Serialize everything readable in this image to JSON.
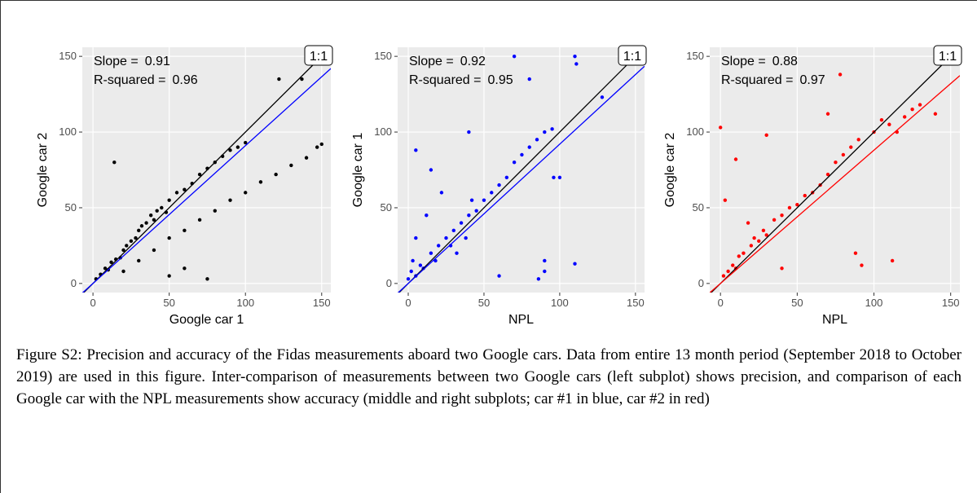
{
  "chart_data": [
    {
      "type": "scatter",
      "xlabel": "Google car 1",
      "ylabel": "Google car 2",
      "color": "#000000",
      "xlim": [
        -7,
        156
      ],
      "ylim": [
        -6,
        156
      ],
      "xticks": [
        0,
        50,
        100,
        150
      ],
      "yticks": [
        0,
        50,
        100,
        150
      ],
      "grid": true,
      "slope_label": "Slope =",
      "r2_label": "R-squared =",
      "identity_label": "1:1",
      "fit": {
        "slope": 0.91,
        "r_squared": 0.96,
        "color": "#0000ff"
      },
      "x": [
        2,
        5,
        8,
        10,
        12,
        15,
        18,
        20,
        22,
        25,
        28,
        30,
        32,
        35,
        38,
        40,
        42,
        45,
        48,
        50,
        55,
        60,
        65,
        70,
        75,
        80,
        85,
        90,
        95,
        100,
        122,
        137,
        14,
        50,
        75,
        60,
        20,
        30,
        40,
        50,
        60,
        70,
        80,
        90,
        100,
        110,
        120,
        130,
        140,
        150,
        147
      ],
      "y": [
        3,
        6,
        10,
        9,
        14,
        16,
        17,
        22,
        25,
        28,
        30,
        35,
        38,
        40,
        45,
        42,
        48,
        50,
        47,
        55,
        60,
        62,
        66,
        72,
        76,
        80,
        84,
        88,
        90,
        93,
        135,
        135,
        80,
        5,
        3,
        10,
        8,
        15,
        22,
        30,
        35,
        42,
        48,
        55,
        60,
        67,
        72,
        78,
        83,
        92,
        90
      ]
    },
    {
      "type": "scatter",
      "xlabel": "NPL",
      "ylabel": "Google car 1",
      "color": "#0000ff",
      "xlim": [
        -7,
        156
      ],
      "ylim": [
        -6,
        156
      ],
      "xticks": [
        0,
        50,
        100,
        150
      ],
      "yticks": [
        0,
        50,
        100,
        150
      ],
      "grid": true,
      "slope_label": "Slope =",
      "r2_label": "R-squared =",
      "identity_label": "1:1",
      "fit": {
        "slope": 0.92,
        "r_squared": 0.95,
        "color": "#0000ff"
      },
      "x": [
        0,
        2,
        3,
        5,
        5,
        8,
        10,
        12,
        15,
        18,
        20,
        22,
        25,
        28,
        30,
        32,
        35,
        38,
        40,
        42,
        45,
        50,
        55,
        60,
        65,
        70,
        75,
        80,
        85,
        90,
        95,
        40,
        70,
        80,
        110,
        111,
        96,
        100,
        86,
        90,
        90,
        110,
        128,
        60,
        5,
        15
      ],
      "y": [
        3,
        8,
        15,
        5,
        30,
        12,
        10,
        45,
        20,
        15,
        25,
        60,
        30,
        25,
        35,
        20,
        40,
        30,
        45,
        55,
        48,
        55,
        60,
        65,
        70,
        80,
        85,
        90,
        95,
        100,
        102,
        100,
        150,
        135,
        150,
        145,
        70,
        70,
        3,
        8,
        15,
        13,
        123,
        5,
        88,
        75
      ]
    },
    {
      "type": "scatter",
      "xlabel": "NPL",
      "ylabel": "Google car 2",
      "color": "#ff0000",
      "xlim": [
        -7,
        156
      ],
      "ylim": [
        -6,
        156
      ],
      "xticks": [
        0,
        50,
        100,
        150
      ],
      "yticks": [
        0,
        50,
        100,
        150
      ],
      "grid": true,
      "slope_label": "Slope =",
      "r2_label": "R-squared =",
      "identity_label": "1:1",
      "fit": {
        "slope": 0.88,
        "r_squared": 0.97,
        "color": "#ff0000"
      },
      "x": [
        0,
        2,
        5,
        8,
        10,
        12,
        15,
        18,
        20,
        22,
        25,
        28,
        30,
        35,
        40,
        45,
        50,
        55,
        60,
        65,
        70,
        75,
        80,
        85,
        90,
        100,
        105,
        110,
        115,
        120,
        125,
        130,
        140,
        78,
        88,
        92,
        112,
        10,
        3,
        30,
        40,
        70
      ],
      "y": [
        103,
        5,
        8,
        12,
        10,
        18,
        20,
        40,
        25,
        30,
        28,
        35,
        32,
        42,
        45,
        50,
        52,
        58,
        60,
        65,
        72,
        80,
        85,
        90,
        95,
        100,
        108,
        105,
        100,
        110,
        115,
        118,
        112,
        138,
        20,
        12,
        15,
        82,
        55,
        98,
        10,
        112
      ]
    }
  ],
  "caption": "Figure S2: Precision and accuracy of the Fidas measurements aboard two Google cars. Data from entire 13 month period (September 2018 to October 2019) are used in this figure. Inter-comparison of measurements between two Google cars (left subplot) shows precision, and comparison of each Google car with the NPL measurements show accuracy (middle and right subplots; car #1 in blue, car #2 in red)"
}
